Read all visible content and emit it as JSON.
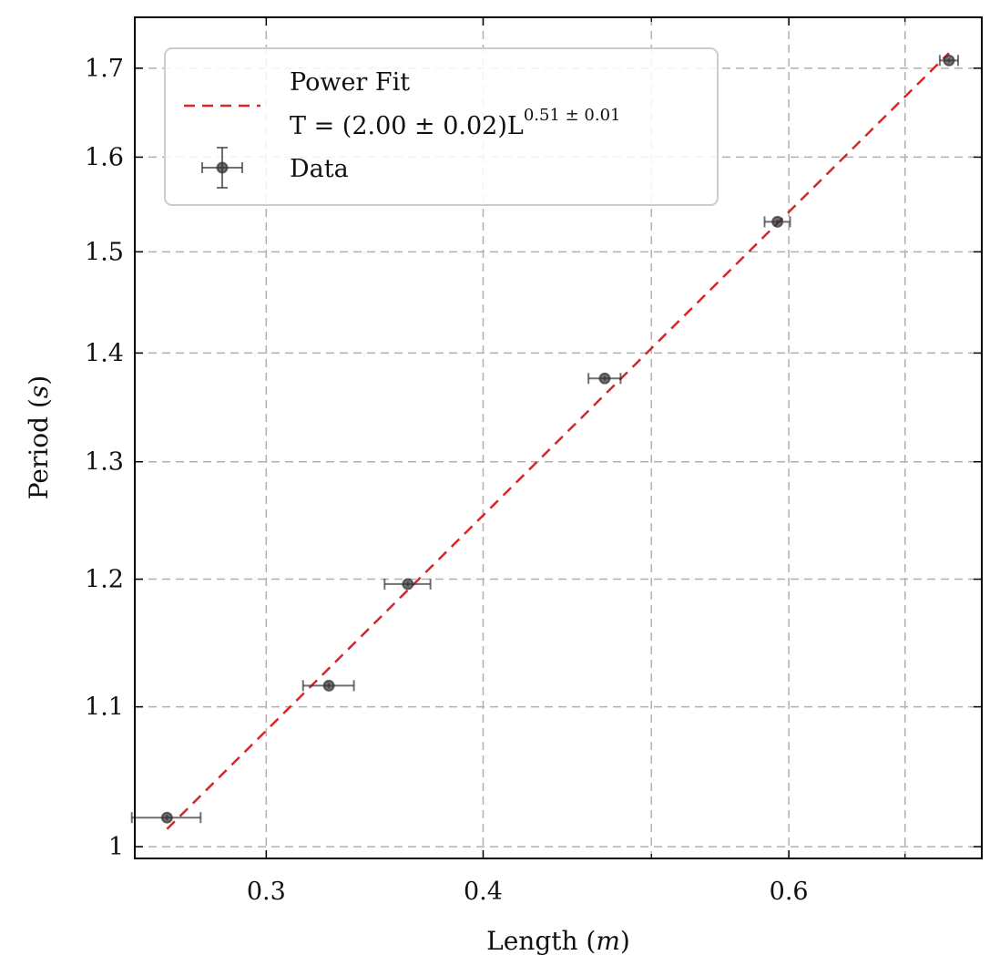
{
  "chart_data": {
    "type": "scatter",
    "xlabel": "Length",
    "xunit": "m",
    "ylabel": "Period",
    "yunit": "s",
    "x_scale": "log",
    "y_scale": "log",
    "xlim": [
      0.252,
      0.775
    ],
    "ylim": [
      0.992,
      1.76
    ],
    "x_ticks": [
      {
        "value": 0.3,
        "label": "0.3"
      },
      {
        "value": 0.4,
        "label": "0.4"
      },
      {
        "value": 0.6,
        "label": "0.6"
      }
    ],
    "x_minor_gridlines": [
      0.5,
      0.7
    ],
    "y_ticks": [
      {
        "value": 1.0,
        "label": "1"
      },
      {
        "value": 1.1,
        "label": "1.1"
      },
      {
        "value": 1.2,
        "label": "1.2"
      },
      {
        "value": 1.3,
        "label": "1.3"
      },
      {
        "value": 1.4,
        "label": "1.4"
      },
      {
        "value": 1.5,
        "label": "1.5"
      },
      {
        "value": 1.6,
        "label": "1.6"
      },
      {
        "value": 1.7,
        "label": "1.7"
      }
    ],
    "grid": true,
    "legend_position": "upper-left",
    "series": [
      {
        "name": "Data",
        "kind": "errorbar",
        "color": "#333333",
        "points": [
          {
            "x": 0.263,
            "y": 1.02,
            "xerr": 0.012,
            "yerr": 0.002
          },
          {
            "x": 0.326,
            "y": 1.116,
            "xerr": 0.011,
            "yerr": 0.002
          },
          {
            "x": 0.362,
            "y": 1.196,
            "xerr": 0.011,
            "yerr": 0.002
          },
          {
            "x": 0.47,
            "y": 1.376,
            "xerr": 0.01,
            "yerr": 0.002
          },
          {
            "x": 0.591,
            "y": 1.531,
            "xerr": 0.01,
            "yerr": 0.002
          },
          {
            "x": 0.742,
            "y": 1.709,
            "xerr": 0.009,
            "yerr": 0.002
          }
        ]
      },
      {
        "name": "Power Fit",
        "name_line2": "T = (2.00 ± 0.02)L",
        "name_exponent": "0.51 ± 0.01",
        "kind": "fit",
        "color": "#d62728",
        "coefficient": 2.0,
        "exponent": 0.51,
        "x_range": [
          0.263,
          0.742
        ]
      }
    ]
  }
}
